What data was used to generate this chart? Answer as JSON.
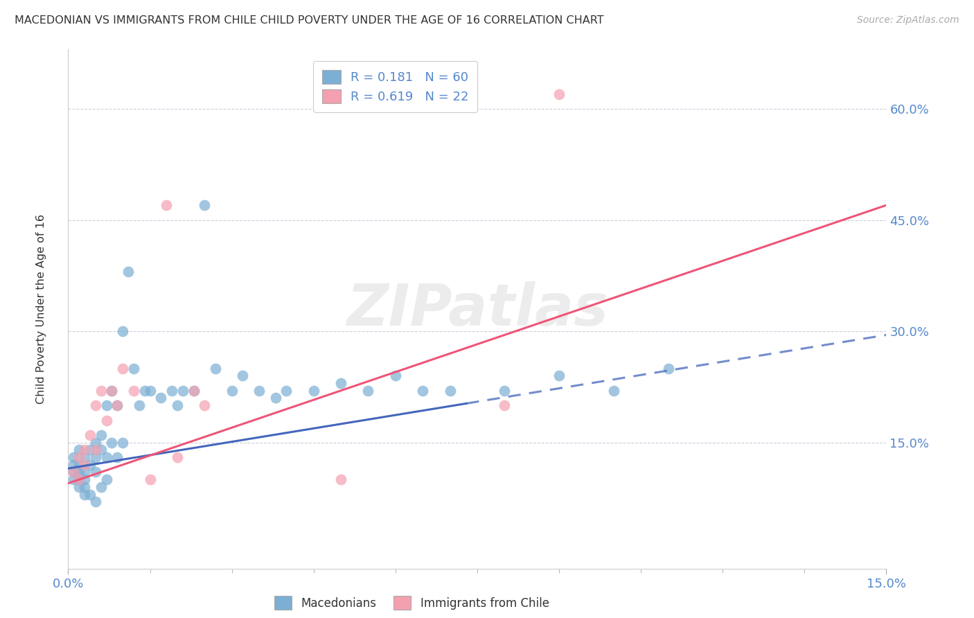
{
  "title": "MACEDONIAN VS IMMIGRANTS FROM CHILE CHILD POVERTY UNDER THE AGE OF 16 CORRELATION CHART",
  "source": "Source: ZipAtlas.com",
  "ylabel": "Child Poverty Under the Age of 16",
  "ytick_labels": [
    "15.0%",
    "30.0%",
    "45.0%",
    "60.0%"
  ],
  "ytick_values": [
    0.15,
    0.3,
    0.45,
    0.6
  ],
  "xlim": [
    0.0,
    0.15
  ],
  "ylim": [
    -0.02,
    0.68
  ],
  "legend_r1": "R = 0.181",
  "legend_n1": "N = 60",
  "legend_r2": "R = 0.619",
  "legend_n2": "N = 22",
  "blue_color": "#7BAFD4",
  "pink_color": "#F4A0B0",
  "trendline_blue": "#4466BB",
  "trendline_pink": "#EE5577",
  "watermark": "ZIPatlas",
  "mac_x": [
    0.001,
    0.001,
    0.001,
    0.001,
    0.002,
    0.002,
    0.002,
    0.002,
    0.002,
    0.003,
    0.003,
    0.003,
    0.003,
    0.003,
    0.004,
    0.004,
    0.004,
    0.005,
    0.005,
    0.005,
    0.005,
    0.006,
    0.006,
    0.006,
    0.007,
    0.007,
    0.007,
    0.008,
    0.008,
    0.009,
    0.009,
    0.01,
    0.01,
    0.011,
    0.012,
    0.013,
    0.014,
    0.015,
    0.017,
    0.019,
    0.02,
    0.021,
    0.023,
    0.025,
    0.027,
    0.03,
    0.032,
    0.035,
    0.038,
    0.04,
    0.045,
    0.05,
    0.055,
    0.06,
    0.065,
    0.07,
    0.08,
    0.09,
    0.1,
    0.11
  ],
  "mac_y": [
    0.13,
    0.12,
    0.11,
    0.1,
    0.14,
    0.12,
    0.11,
    0.1,
    0.09,
    0.13,
    0.11,
    0.1,
    0.09,
    0.08,
    0.14,
    0.12,
    0.08,
    0.15,
    0.13,
    0.11,
    0.07,
    0.16,
    0.14,
    0.09,
    0.2,
    0.13,
    0.1,
    0.22,
    0.15,
    0.2,
    0.13,
    0.3,
    0.15,
    0.38,
    0.25,
    0.2,
    0.22,
    0.22,
    0.21,
    0.22,
    0.2,
    0.22,
    0.22,
    0.47,
    0.25,
    0.22,
    0.24,
    0.22,
    0.21,
    0.22,
    0.22,
    0.23,
    0.22,
    0.24,
    0.22,
    0.22,
    0.22,
    0.24,
    0.22,
    0.25
  ],
  "chile_x": [
    0.001,
    0.002,
    0.002,
    0.003,
    0.003,
    0.004,
    0.005,
    0.005,
    0.006,
    0.007,
    0.008,
    0.009,
    0.01,
    0.012,
    0.015,
    0.018,
    0.02,
    0.023,
    0.025,
    0.05,
    0.08,
    0.09
  ],
  "chile_y": [
    0.11,
    0.13,
    0.1,
    0.14,
    0.12,
    0.16,
    0.2,
    0.14,
    0.22,
    0.18,
    0.22,
    0.2,
    0.25,
    0.22,
    0.1,
    0.47,
    0.13,
    0.22,
    0.2,
    0.1,
    0.2,
    0.62
  ]
}
